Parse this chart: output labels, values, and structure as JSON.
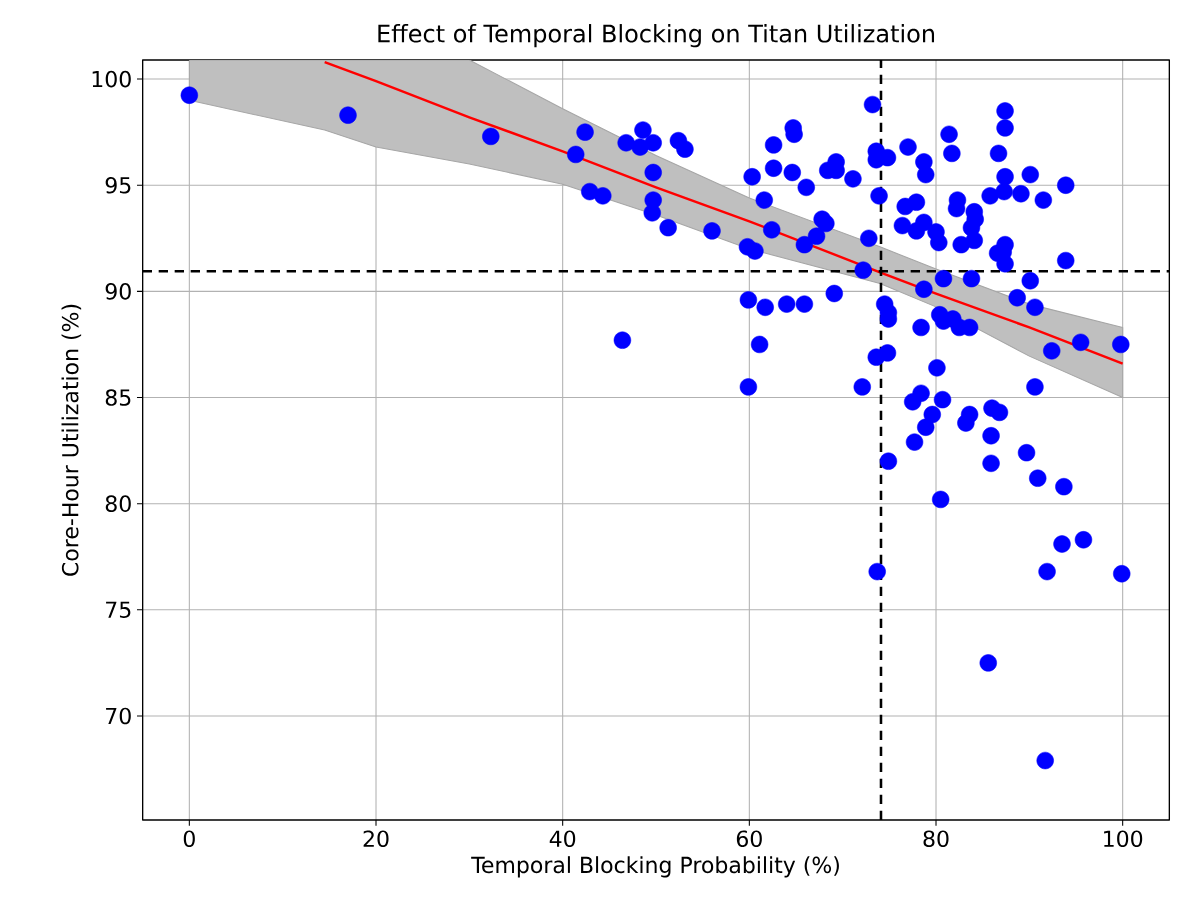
{
  "chart_data": {
    "type": "scatter",
    "title": "Effect of Temporal Blocking on Titan Utilization",
    "xlabel": "Temporal Blocking Probability (%)",
    "ylabel": "Core-Hour Utilization (%)",
    "xlim": [
      -5,
      105
    ],
    "ylim": [
      65.1,
      100.9
    ],
    "xticks": [
      0,
      20,
      40,
      60,
      80,
      100
    ],
    "yticks": [
      70,
      75,
      80,
      85,
      90,
      95,
      100
    ],
    "grid": true,
    "series": [
      {
        "type": "line",
        "color": "#ff0000",
        "marker": "none",
        "x": [
          0,
          14.5,
          20,
          30,
          40,
          50,
          60,
          74,
          80,
          90,
          100
        ],
        "values": [
          null,
          100.8,
          99.9,
          98.2,
          96.6,
          94.9,
          93.3,
          90.9,
          89.9,
          88.3,
          86.6
        ],
        "lower": [
          99.0,
          97.6,
          96.8,
          96.0,
          95.05,
          93.6,
          92.0,
          90.37,
          89.27,
          86.95,
          85.0
        ],
        "upper": [
          100.9,
          100.9,
          100.9,
          100.9,
          98.6,
          96.4,
          94.4,
          92.1,
          91.05,
          89.4,
          88.3
        ]
      },
      {
        "color": "#0000ff",
        "marker": "circle",
        "x": [
          0,
          17.0,
          32.3,
          41.4,
          42.4,
          42.9,
          44.3,
          46.4,
          46.8,
          48.6,
          48.3,
          49.7,
          49.7,
          49.7,
          49.6,
          51.3,
          52.4,
          53.1,
          56.0,
          59.8,
          60.6,
          59.9,
          59.9,
          60.3,
          61.1,
          61.6,
          61.7,
          62.4,
          62.6,
          62.6,
          64.0,
          64.6,
          64.7,
          64.8,
          65.9,
          65.9,
          66.1,
          67.2,
          67.8,
          68.2,
          68.4,
          69.3,
          69.3,
          69.1,
          71.1,
          72.1,
          72.2,
          72.8,
          73.2,
          73.6,
          73.6,
          73.6,
          73.7,
          73.9,
          74.8,
          74.5,
          74.9,
          74.9,
          74.8,
          74.9,
          77.0,
          76.7,
          76.4,
          77.9,
          77.9,
          77.5,
          77.7,
          78.4,
          78.7,
          78.9,
          78.7,
          78.7,
          78.9,
          78.4,
          79.6,
          80.0,
          80.3,
          80.1,
          80.5,
          80.8,
          80.4,
          80.8,
          80.7,
          81.4,
          81.7,
          81.8,
          82.3,
          82.2,
          82.7,
          82.5,
          83.2,
          83.6,
          83.6,
          83.8,
          84.1,
          83.8,
          84.1,
          84.2,
          85.8,
          85.6,
          86.0,
          85.9,
          85.9,
          86.8,
          86.7,
          86.6,
          87.3,
          87.4,
          87.4,
          87.4,
          87.4,
          87.2,
          87.4,
          88.7,
          89.1,
          89.7,
          90.1,
          90.1,
          90.6,
          90.6,
          90.9,
          91.5,
          91.9,
          91.7,
          92.4,
          93.5,
          93.7,
          93.9,
          93.9,
          95.5,
          95.8,
          99.8,
          99.9
        ],
        "values": [
          99.24,
          98.3,
          97.3,
          96.45,
          97.5,
          94.7,
          94.5,
          87.7,
          97.0,
          97.6,
          96.8,
          97.0,
          95.6,
          94.3,
          93.7,
          93.0,
          97.1,
          96.7,
          92.85,
          92.1,
          91.9,
          89.6,
          85.5,
          95.4,
          87.5,
          94.3,
          89.25,
          92.9,
          96.9,
          95.8,
          89.4,
          95.6,
          97.7,
          97.4,
          89.4,
          92.2,
          94.9,
          92.6,
          93.4,
          93.2,
          95.7,
          96.1,
          95.7,
          89.9,
          95.3,
          85.5,
          91.0,
          92.5,
          98.8,
          96.6,
          96.2,
          86.9,
          76.8,
          94.5,
          96.3,
          89.4,
          89.0,
          88.7,
          87.1,
          82.0,
          96.8,
          94.0,
          93.1,
          94.2,
          92.85,
          84.8,
          82.9,
          88.3,
          96.1,
          95.5,
          93.25,
          90.1,
          83.6,
          85.2,
          84.2,
          92.8,
          92.3,
          86.4,
          80.2,
          90.6,
          88.9,
          88.6,
          84.9,
          97.4,
          96.5,
          88.7,
          94.3,
          93.9,
          92.2,
          88.3,
          83.8,
          84.2,
          88.3,
          93.0,
          92.4,
          90.6,
          93.75,
          93.4,
          94.5,
          72.5,
          84.5,
          83.2,
          81.9,
          84.3,
          96.5,
          91.8,
          94.7,
          98.5,
          97.7,
          95.4,
          92.2,
          91.85,
          91.3,
          89.7,
          94.6,
          82.4,
          95.5,
          90.5,
          89.25,
          85.5,
          81.2,
          94.3,
          76.8,
          67.9,
          87.2,
          78.1,
          80.8,
          95.0,
          91.45,
          87.6,
          78.3,
          87.5,
          76.7
        ]
      }
    ],
    "ref_lines": [
      {
        "axis": "y",
        "value": 90.95,
        "color": "#000000",
        "line_style": "dashed"
      },
      {
        "axis": "x",
        "value": 74.1,
        "color": "#000000",
        "line_style": "dashed"
      }
    ]
  }
}
